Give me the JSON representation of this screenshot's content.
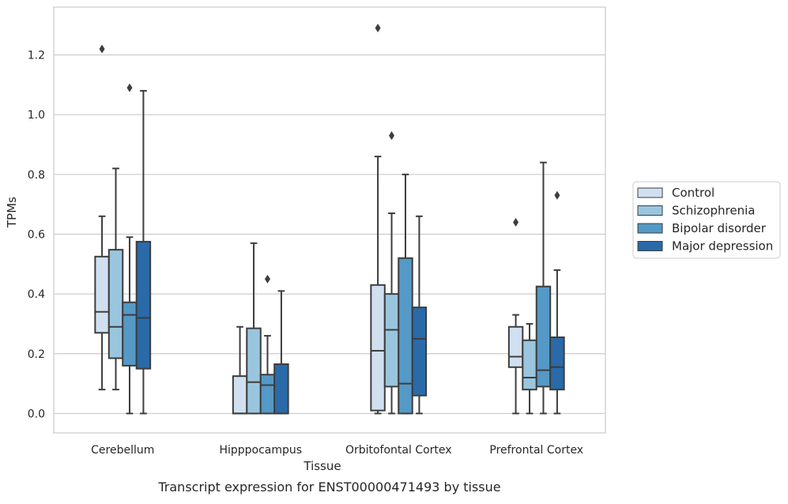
{
  "chart_data": {
    "type": "boxplot",
    "xlabel": "Tissue",
    "ylabel": "TPMs",
    "caption": "Transcript expression for ENST00000471493 by tissue",
    "ylim": [
      -0.065,
      1.36
    ],
    "yticks": [
      "0.0",
      "0.2",
      "0.4",
      "0.6",
      "0.8",
      "1.0",
      "1.2"
    ],
    "grid": true,
    "legend_position": "right, outside",
    "categories": [
      "Cerebellum",
      "Hipppocampus",
      "Orbitofontal Cortex",
      "Prefrontal Cortex"
    ],
    "series": [
      {
        "name": "Control",
        "color": "#d0e0f0",
        "boxes": [
          {
            "whislo": 0.08,
            "q1": 0.27,
            "med": 0.34,
            "q3": 0.525,
            "whishi": 0.66,
            "fliers": [
              1.22
            ]
          },
          {
            "whislo": 0.0,
            "q1": 0.0,
            "med": 0.0,
            "q3": 0.125,
            "whishi": 0.29,
            "fliers": []
          },
          {
            "whislo": 0.0,
            "q1": 0.01,
            "med": 0.21,
            "q3": 0.43,
            "whishi": 0.86,
            "fliers": [
              1.29
            ]
          },
          {
            "whislo": 0.0,
            "q1": 0.155,
            "med": 0.19,
            "q3": 0.29,
            "whishi": 0.33,
            "fliers": [
              0.64
            ]
          }
        ]
      },
      {
        "name": "Schizophrenia",
        "color": "#9ac5de",
        "boxes": [
          {
            "whislo": 0.08,
            "q1": 0.185,
            "med": 0.29,
            "q3": 0.548,
            "whishi": 0.82,
            "fliers": []
          },
          {
            "whislo": 0.0,
            "q1": 0.0,
            "med": 0.105,
            "q3": 0.285,
            "whishi": 0.57,
            "fliers": []
          },
          {
            "whislo": 0.0,
            "q1": 0.09,
            "med": 0.28,
            "q3": 0.4,
            "whishi": 0.67,
            "fliers": [
              0.93
            ]
          },
          {
            "whislo": 0.0,
            "q1": 0.08,
            "med": 0.12,
            "q3": 0.245,
            "whishi": 0.3,
            "fliers": []
          }
        ]
      },
      {
        "name": "Bipolar disorder",
        "color": "#5599c6",
        "boxes": [
          {
            "whislo": 0.0,
            "q1": 0.16,
            "med": 0.33,
            "q3": 0.372,
            "whishi": 0.59,
            "fliers": [
              1.09
            ]
          },
          {
            "whislo": 0.0,
            "q1": 0.0,
            "med": 0.095,
            "q3": 0.13,
            "whishi": 0.26,
            "fliers": [
              0.45
            ]
          },
          {
            "whislo": 0.0,
            "q1": 0.0,
            "med": 0.1,
            "q3": 0.52,
            "whishi": 0.8,
            "fliers": []
          },
          {
            "whislo": 0.0,
            "q1": 0.09,
            "med": 0.145,
            "q3": 0.425,
            "whishi": 0.84,
            "fliers": []
          }
        ]
      },
      {
        "name": "Major depression",
        "color": "#2a6aa8",
        "boxes": [
          {
            "whislo": 0.0,
            "q1": 0.15,
            "med": 0.32,
            "q3": 0.575,
            "whishi": 1.08,
            "fliers": []
          },
          {
            "whislo": 0.0,
            "q1": 0.0,
            "med": 0.0,
            "q3": 0.165,
            "whishi": 0.41,
            "fliers": []
          },
          {
            "whislo": 0.0,
            "q1": 0.06,
            "med": 0.25,
            "q3": 0.355,
            "whishi": 0.66,
            "fliers": []
          },
          {
            "whislo": 0.0,
            "q1": 0.08,
            "med": 0.155,
            "q3": 0.255,
            "whishi": 0.48,
            "fliers": [
              0.73
            ]
          }
        ]
      }
    ]
  }
}
